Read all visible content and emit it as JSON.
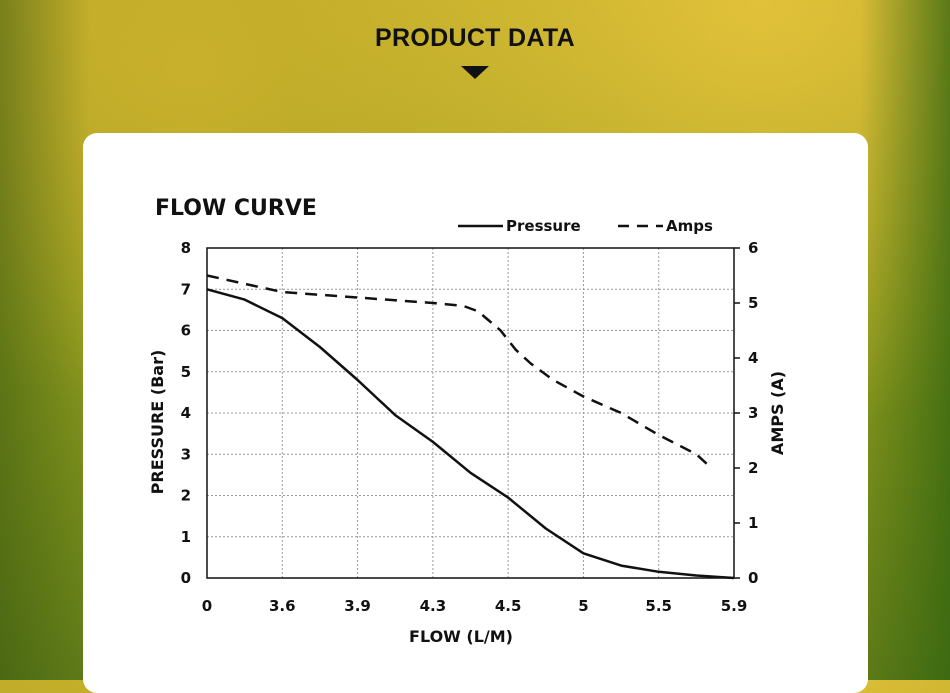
{
  "header": {
    "title": "PRODUCT DATA"
  },
  "chart_data": {
    "type": "line",
    "title": "FLOW CURVE",
    "xlabel": "FLOW (L/M)",
    "ylabel": "PRESSURE (Bar)",
    "y2label": "AMPS (A)",
    "categories": [
      "0",
      "3.6",
      "3.9",
      "4.3",
      "4.5",
      "5",
      "5.5",
      "5.9"
    ],
    "ylim": [
      0,
      8
    ],
    "y2lim": [
      0,
      6
    ],
    "yticks": [
      "0",
      "1",
      "2",
      "3",
      "4",
      "5",
      "6",
      "7",
      "8"
    ],
    "y2ticks": [
      "0",
      "1",
      "2",
      "3",
      "4",
      "5",
      "6"
    ],
    "grid": true,
    "legend_position": "top-right",
    "series": [
      {
        "name": "Pressure",
        "axis": "left",
        "style": "solid",
        "points": [
          [
            0,
            7.0
          ],
          [
            0.5,
            6.75
          ],
          [
            1,
            6.3
          ],
          [
            1.5,
            5.6
          ],
          [
            2,
            4.8
          ],
          [
            2.5,
            3.95
          ],
          [
            3,
            3.3
          ],
          [
            3.5,
            2.55
          ],
          [
            4,
            1.95
          ],
          [
            4.5,
            1.2
          ],
          [
            5,
            0.6
          ],
          [
            5.5,
            0.3
          ],
          [
            6,
            0.15
          ],
          [
            6.5,
            0.06
          ],
          [
            7,
            0.0
          ]
        ]
      },
      {
        "name": "Amps",
        "axis": "right",
        "style": "dashed",
        "points": [
          [
            0,
            5.5
          ],
          [
            0.5,
            5.35
          ],
          [
            1,
            5.2
          ],
          [
            1.5,
            5.15
          ],
          [
            2,
            5.1
          ],
          [
            2.5,
            5.05
          ],
          [
            3,
            5.0
          ],
          [
            3.4,
            4.95
          ],
          [
            3.6,
            4.85
          ],
          [
            3.9,
            4.5
          ],
          [
            4.1,
            4.15
          ],
          [
            4.3,
            3.9
          ],
          [
            4.6,
            3.6
          ],
          [
            5,
            3.3
          ],
          [
            5.5,
            3.0
          ],
          [
            6,
            2.6
          ],
          [
            6.5,
            2.25
          ],
          [
            6.7,
            2.0
          ]
        ]
      }
    ]
  }
}
